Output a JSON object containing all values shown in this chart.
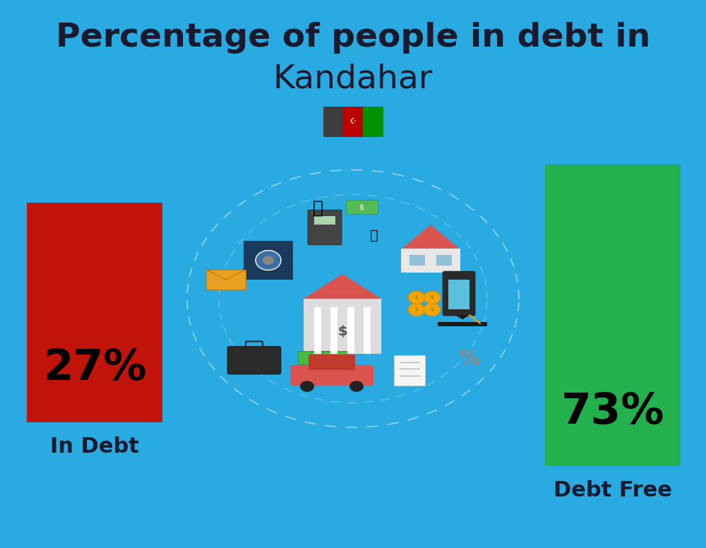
{
  "title_line1": "Percentage of people in debt in",
  "title_line2": "Kandahar",
  "title_color": "#1a1a2e",
  "title_fontsize": 34,
  "subtitle_fontsize": 34,
  "background_color": "#29abe2",
  "bar_in_debt_value": 27,
  "bar_debt_free_value": 73,
  "bar_in_debt_label": "In Debt",
  "bar_debt_free_label": "Debt Free",
  "bar_in_debt_color": "#c0130a",
  "bar_debt_free_color": "#22b14c",
  "bar_label_color": "#000000",
  "bar_pct_fontsize": 44,
  "bar_category_fontsize": 22,
  "label_color": "#1a1a2e",
  "flag_colors": [
    "#3d3d3d",
    "#bc0000",
    "#009000"
  ],
  "illus_colors": {
    "house_roof": "#d9534f",
    "house_wall": "#cccccc",
    "bank_roof": "#d9534f",
    "bank_wall": "#dddddd",
    "money": "#44bb44",
    "gold": "#f0a500",
    "dark": "#1a3a5c",
    "circle_bg": "#29abe2"
  }
}
